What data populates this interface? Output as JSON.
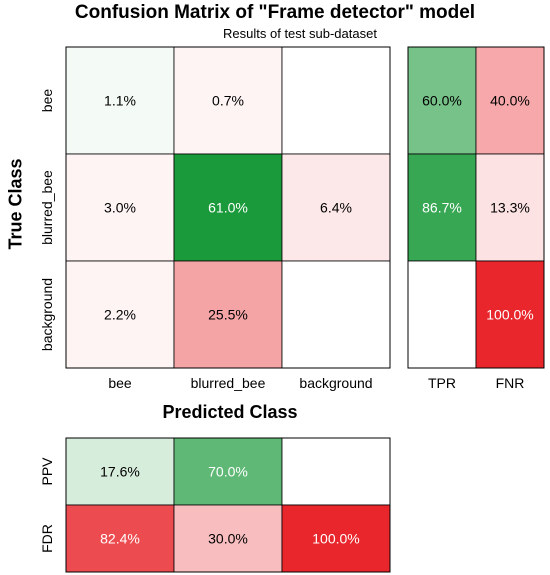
{
  "chart_data": {
    "type": "heatmap",
    "title": "Confusion Matrix of \"Frame detector\" model",
    "subtitle": "Results of test sub-dataset",
    "ylabel": "True Class",
    "xlabel": "Predicted Class",
    "true_classes": [
      "bee",
      "blurred_bee",
      "background"
    ],
    "predicted_classes": [
      "bee",
      "blurred_bee",
      "background"
    ],
    "matrix": [
      [
        1.1,
        0.7,
        null
      ],
      [
        3.0,
        61.0,
        6.4
      ],
      [
        2.2,
        25.5,
        null
      ]
    ],
    "matrix_labels": [
      [
        "1.1%",
        "0.7%",
        ""
      ],
      [
        "3.0%",
        "61.0%",
        "6.4%"
      ],
      [
        "2.2%",
        "25.5%",
        ""
      ]
    ],
    "row_metrics": {
      "columns": [
        "TPR",
        "FNR"
      ],
      "values": [
        [
          60.0,
          40.0
        ],
        [
          86.7,
          13.3
        ],
        [
          null,
          100.0
        ]
      ],
      "labels": [
        [
          "60.0%",
          "40.0%"
        ],
        [
          "86.7%",
          "13.3%"
        ],
        [
          "",
          "100.0%"
        ]
      ]
    },
    "col_metrics": {
      "rows": [
        "PPV",
        "FDR"
      ],
      "values": [
        [
          17.6,
          70.0,
          null
        ],
        [
          82.4,
          30.0,
          100.0
        ]
      ],
      "labels": [
        [
          "17.6%",
          "70.0%",
          ""
        ],
        [
          "82.4%",
          "30.0%",
          "100.0%"
        ]
      ]
    },
    "colors": {
      "correct": "#1a9a3a",
      "error": "#e8262b",
      "empty": "#ffffff"
    }
  }
}
